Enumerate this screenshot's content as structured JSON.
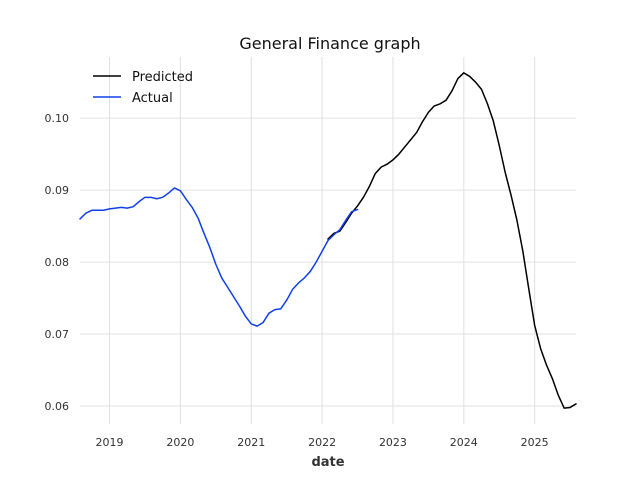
{
  "chart_data": {
    "type": "line",
    "title": "General Finance graph",
    "xlabel": "date",
    "ylabel": "",
    "x_ticks": [
      "2019",
      "2020",
      "2021",
      "2022",
      "2023",
      "2024",
      "2025"
    ],
    "y_ticks": [
      "0.06",
      "0.07",
      "0.08",
      "0.09",
      "0.10"
    ],
    "xlim": [
      "2018-08",
      "2025-08"
    ],
    "ylim": [
      0.0575,
      0.1085
    ],
    "grid": true,
    "legend_position": "top-left",
    "series": [
      {
        "name": "Predicted",
        "color": "#000000",
        "x": [
          "2022-02",
          "2022-03",
          "2022-04",
          "2022-05",
          "2022-06",
          "2022-07",
          "2022-08",
          "2022-09",
          "2022-10",
          "2022-11",
          "2022-12",
          "2023-01",
          "2023-02",
          "2023-03",
          "2023-04",
          "2023-05",
          "2023-06",
          "2023-07",
          "2023-08",
          "2023-09",
          "2023-10",
          "2023-11",
          "2023-12",
          "2024-01",
          "2024-02",
          "2024-03",
          "2024-04",
          "2024-05",
          "2024-06",
          "2024-07",
          "2024-08",
          "2024-09",
          "2024-10",
          "2024-11",
          "2024-12",
          "2025-01",
          "2025-02",
          "2025-03",
          "2025-04",
          "2025-05",
          "2025-06",
          "2025-07",
          "2025-08"
        ],
        "values": [
          0.0832,
          0.084,
          0.0843,
          0.0855,
          0.0868,
          0.0878,
          0.089,
          0.0905,
          0.0923,
          0.0932,
          0.0936,
          0.0942,
          0.095,
          0.096,
          0.097,
          0.098,
          0.0995,
          0.1008,
          0.1017,
          0.102,
          0.1025,
          0.1038,
          0.1055,
          0.1063,
          0.1058,
          0.105,
          0.104,
          0.102,
          0.0996,
          0.0962,
          0.0925,
          0.0893,
          0.0858,
          0.0815,
          0.0763,
          0.0712,
          0.068,
          0.0657,
          0.0638,
          0.0615,
          0.0597,
          0.0598,
          0.0603
        ]
      },
      {
        "name": "Actual",
        "color": "#1240e8",
        "x": [
          "2018-08",
          "2018-09",
          "2018-10",
          "2018-11",
          "2018-12",
          "2019-01",
          "2019-02",
          "2019-03",
          "2019-04",
          "2019-05",
          "2019-06",
          "2019-07",
          "2019-08",
          "2019-09",
          "2019-10",
          "2019-11",
          "2019-12",
          "2020-01",
          "2020-02",
          "2020-03",
          "2020-04",
          "2020-05",
          "2020-06",
          "2020-07",
          "2020-08",
          "2020-09",
          "2020-10",
          "2020-11",
          "2020-12",
          "2021-01",
          "2021-02",
          "2021-03",
          "2021-04",
          "2021-05",
          "2021-06",
          "2021-07",
          "2021-08",
          "2021-09",
          "2021-10",
          "2021-11",
          "2021-12",
          "2022-01",
          "2022-02",
          "2022-03",
          "2022-04",
          "2022-05",
          "2022-06",
          "2022-07"
        ],
        "values": [
          0.086,
          0.0868,
          0.0872,
          0.0872,
          0.0872,
          0.0874,
          0.0875,
          0.0876,
          0.0875,
          0.0877,
          0.0884,
          0.089,
          0.089,
          0.0888,
          0.089,
          0.0896,
          0.0903,
          0.0899,
          0.0887,
          0.0876,
          0.0861,
          0.084,
          0.082,
          0.0797,
          0.0778,
          0.0765,
          0.0752,
          0.0739,
          0.0725,
          0.0714,
          0.0711,
          0.0716,
          0.0729,
          0.0734,
          0.0735,
          0.0747,
          0.0762,
          0.0771,
          0.0778,
          0.0787,
          0.08,
          0.0815,
          0.083,
          0.0838,
          0.0845,
          0.0858,
          0.087,
          0.0873
        ]
      }
    ]
  }
}
